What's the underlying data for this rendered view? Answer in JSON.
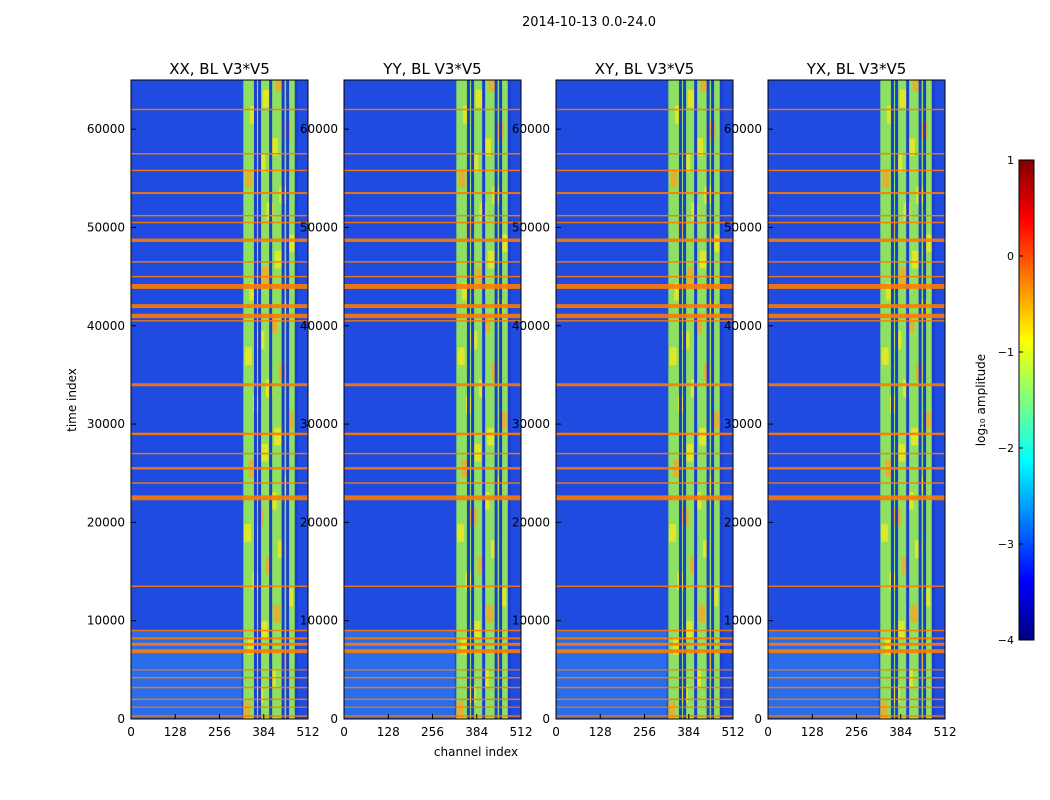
{
  "figure": {
    "suptitle": "2014-10-13 0.0-24.0"
  },
  "chart_data": {
    "type": "heatmap",
    "shared_axes": {
      "xlabel": "channel index",
      "ylabel": "time index",
      "xlim": [
        0,
        512
      ],
      "ylim": [
        0,
        65000
      ],
      "xticks": [
        0,
        128,
        256,
        384,
        512
      ],
      "yticks": [
        0,
        10000,
        20000,
        30000,
        40000,
        50000,
        60000
      ]
    },
    "panels": [
      {
        "title": "XX, BL V3*V5",
        "bright_channel_range": [
          325,
          480
        ]
      },
      {
        "title": "YY, BL V3*V5",
        "bright_channel_range": [
          325,
          480
        ]
      },
      {
        "title": "XY, BL V3*V5",
        "bright_channel_range": [
          325,
          480
        ]
      },
      {
        "title": "YX, BL V3*V5",
        "bright_channel_range": [
          325,
          480
        ]
      }
    ],
    "dark_channel_columns": [
      360,
      372,
      404,
      440,
      453,
      478
    ],
    "flagged_time_bands": [
      {
        "t": 300,
        "w": 150
      },
      {
        "t": 1200,
        "w": 120
      },
      {
        "t": 2000,
        "w": 150
      },
      {
        "t": 3200,
        "w": 150
      },
      {
        "t": 4200,
        "w": 150
      },
      {
        "t": 5000,
        "w": 120
      },
      {
        "t": 6900,
        "w": 400
      },
      {
        "t": 7600,
        "w": 300
      },
      {
        "t": 8200,
        "w": 200
      },
      {
        "t": 9000,
        "w": 150
      },
      {
        "t": 13500,
        "w": 150
      },
      {
        "t": 22500,
        "w": 500
      },
      {
        "t": 24000,
        "w": 150
      },
      {
        "t": 25500,
        "w": 250
      },
      {
        "t": 27000,
        "w": 150
      },
      {
        "t": 29000,
        "w": 250
      },
      {
        "t": 34000,
        "w": 300
      },
      {
        "t": 40500,
        "w": 150
      },
      {
        "t": 41000,
        "w": 450
      },
      {
        "t": 42000,
        "w": 400
      },
      {
        "t": 44000,
        "w": 500
      },
      {
        "t": 45000,
        "w": 150
      },
      {
        "t": 46500,
        "w": 150
      },
      {
        "t": 48700,
        "w": 350
      },
      {
        "t": 50500,
        "w": 150
      },
      {
        "t": 51200,
        "w": 150
      },
      {
        "t": 53500,
        "w": 200
      },
      {
        "t": 55800,
        "w": 150
      },
      {
        "t": 57500,
        "w": 150
      },
      {
        "t": 62000,
        "w": 150
      }
    ],
    "colorbar": {
      "label": "log₁₀ amplitude",
      "range": [
        -4,
        1
      ],
      "ticks": [
        {
          "value": 1,
          "label": "1"
        },
        {
          "value": 0,
          "label": "0"
        },
        {
          "value": -1,
          "label": "−1"
        },
        {
          "value": -2,
          "label": "−2"
        },
        {
          "value": -3,
          "label": "−3"
        },
        {
          "value": -4,
          "label": "−4"
        }
      ],
      "colormap": "jet",
      "colors": [
        "#00007f",
        "#0000ff",
        "#007fff",
        "#00ffff",
        "#7fff7f",
        "#ffff00",
        "#ff7f00",
        "#ff0000",
        "#7f0000"
      ]
    },
    "colors": {
      "background": "#1f4be0",
      "band_base": "#8ee060",
      "band_yellow": "#f2ea1a",
      "band_orange": "#f5a623",
      "flag_line": "#ff7a00",
      "dark_column": "#1c3fd0"
    }
  }
}
